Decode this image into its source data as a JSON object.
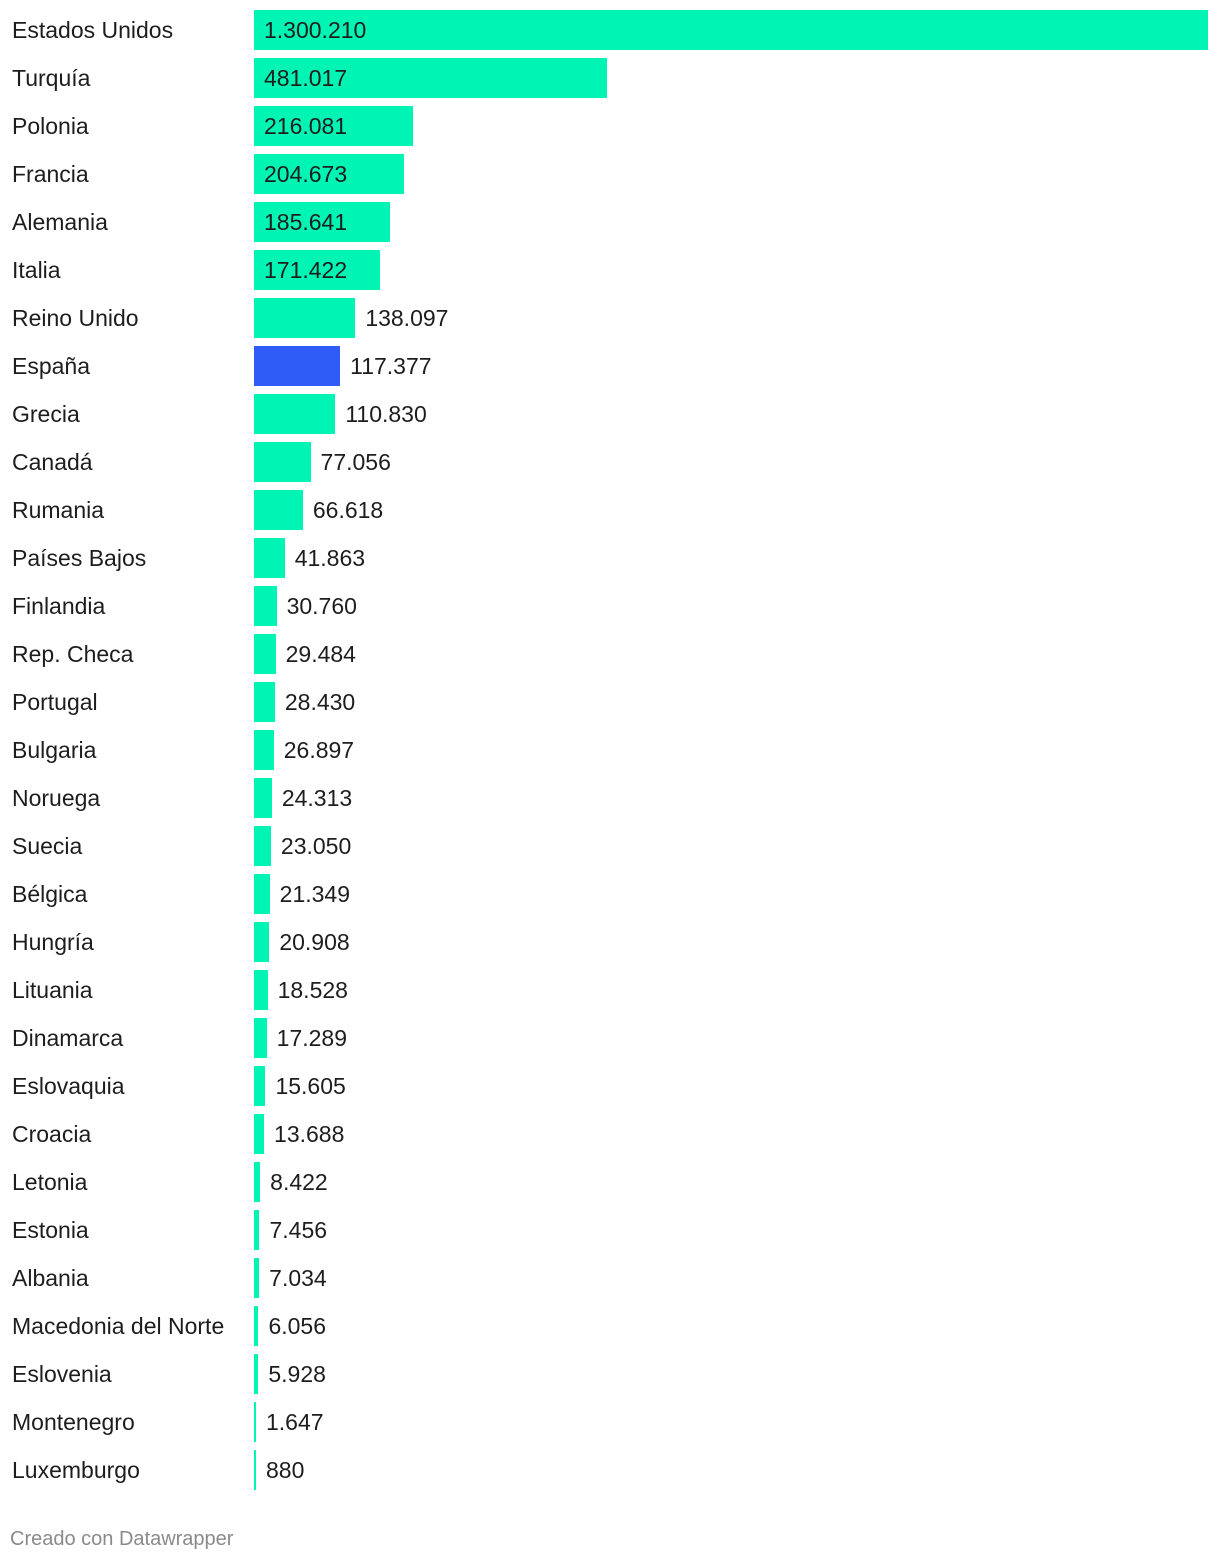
{
  "chart_data": {
    "type": "bar",
    "orientation": "horizontal",
    "categories": [
      "Estados Unidos",
      "Turquía",
      "Polonia",
      "Francia",
      "Alemania",
      "Italia",
      "Reino Unido",
      "España",
      "Grecia",
      "Canadá",
      "Rumania",
      "Países Bajos",
      "Finlandia",
      "Rep. Checa",
      "Portugal",
      "Bulgaria",
      "Noruega",
      "Suecia",
      "Bélgica",
      "Hungría",
      "Lituania",
      "Dinamarca",
      "Eslovaquia",
      "Croacia",
      "Letonia",
      "Estonia",
      "Albania",
      "Macedonia del Norte",
      "Eslovenia",
      "Montenegro",
      "Luxemburgo"
    ],
    "values": [
      1300210,
      481017,
      216081,
      204673,
      185641,
      171422,
      138097,
      117377,
      110830,
      77056,
      66618,
      41863,
      30760,
      29484,
      28430,
      26897,
      24313,
      23050,
      21349,
      20908,
      18528,
      17289,
      15605,
      13688,
      8422,
      7456,
      7034,
      6056,
      5928,
      1647,
      880
    ],
    "value_labels": [
      "1.300.210",
      "481.017",
      "216.081",
      "204.673",
      "185.641",
      "171.422",
      "138.097",
      "117.377",
      "110.830",
      "77.056",
      "66.618",
      "41.863",
      "30.760",
      "29.484",
      "28.430",
      "26.897",
      "24.313",
      "23.050",
      "21.349",
      "20.908",
      "18.528",
      "17.289",
      "15.605",
      "13.688",
      "8.422",
      "7.456",
      "7.034",
      "6.056",
      "5.928",
      "1.647",
      "880"
    ],
    "highlight_category": "España",
    "xlim": [
      0,
      1300210
    ],
    "grid": false,
    "title": "",
    "xlabel": "",
    "ylabel": ""
  },
  "colors": {
    "bar": "#00f5b4",
    "highlight": "#2f5cf7",
    "text": "#1d1d1d",
    "footer": "#8a8a8a"
  },
  "footer": {
    "credit": "Creado con Datawrapper"
  }
}
